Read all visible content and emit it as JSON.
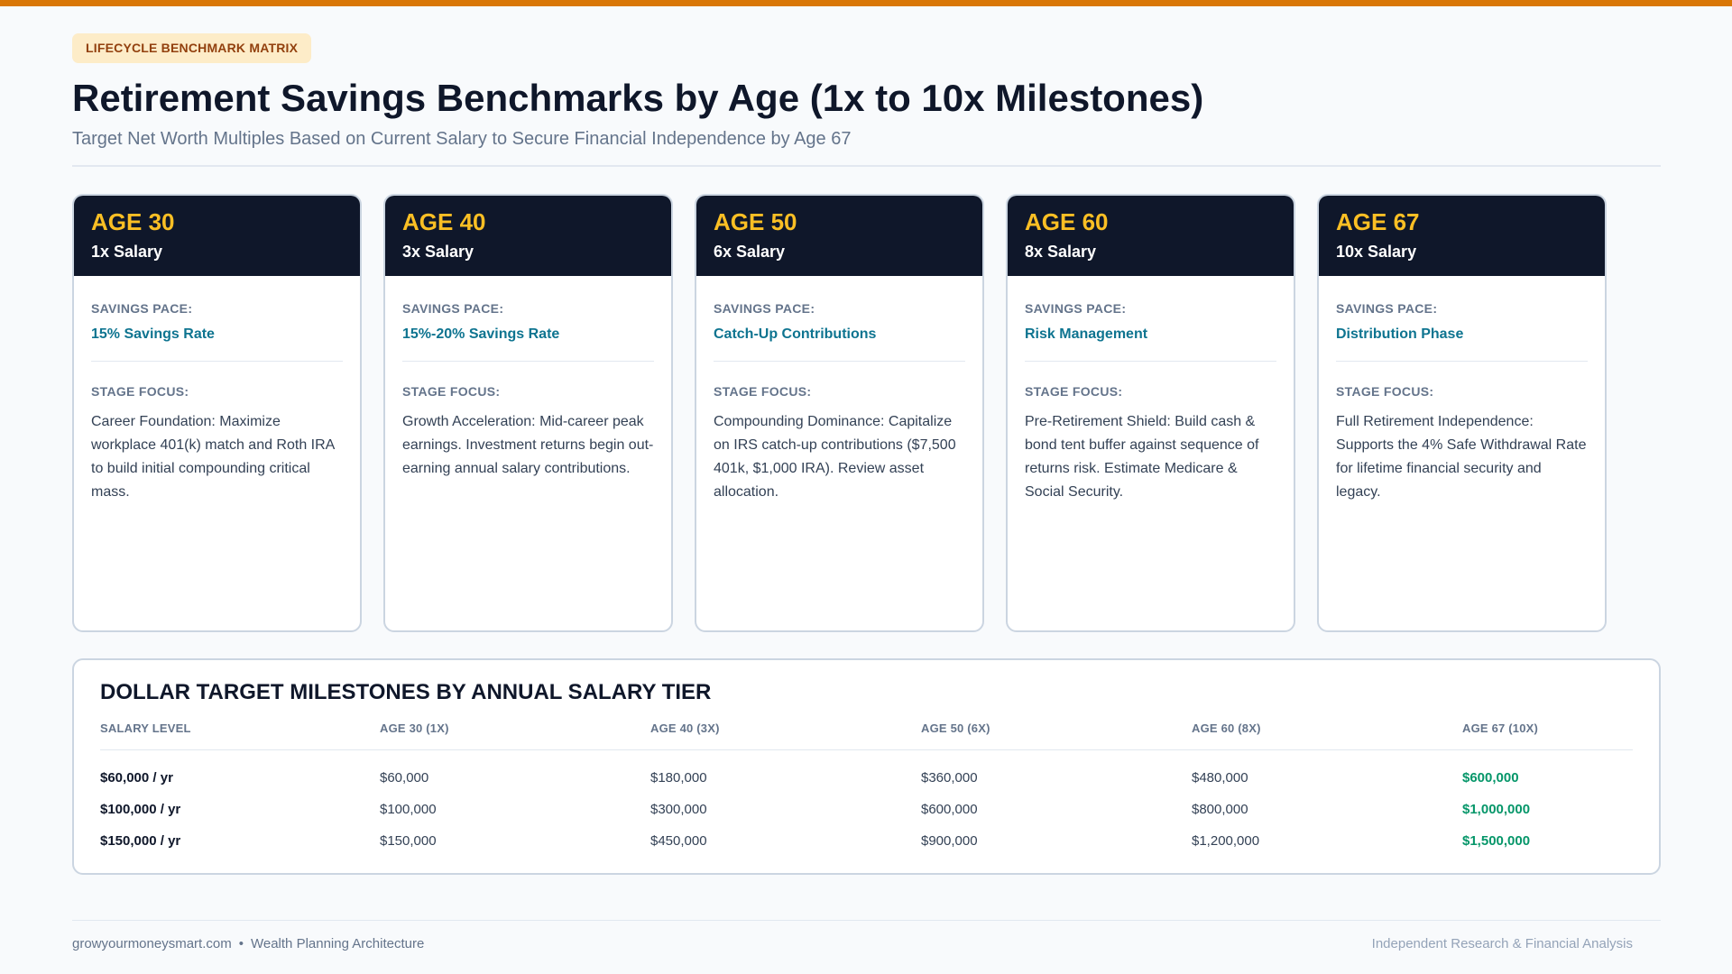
{
  "header": {
    "badge": "LIFECYCLE BENCHMARK MATRIX",
    "title": "Retirement Savings Benchmarks by Age (1x to 10x Milestones)",
    "subtitle": "Target Net Worth Multiples Based on Current Salary to Secure Financial Independence by Age 67"
  },
  "labels": {
    "pace": "SAVINGS PACE:",
    "focus": "STAGE FOCUS:"
  },
  "cards": [
    {
      "age": "AGE 30",
      "multiple": "1x Salary",
      "pace": "15% Savings Rate",
      "focus": "Career Foundation: Maximize workplace 401(k) match and Roth IRA to build initial compounding critical mass."
    },
    {
      "age": "AGE 40",
      "multiple": "3x Salary",
      "pace": "15%-20% Savings Rate",
      "focus": "Growth Acceleration: Mid-career peak earnings. Investment returns begin out-earning annual salary contributions."
    },
    {
      "age": "AGE 50",
      "multiple": "6x Salary",
      "pace": "Catch-Up Contributions",
      "focus": "Compounding Dominance: Capitalize on IRS catch-up contributions ($7,500 401k, $1,000 IRA). Review asset allocation."
    },
    {
      "age": "AGE 60",
      "multiple": "8x Salary",
      "pace": "Risk Management",
      "focus": "Pre-Retirement Shield: Build cash & bond tent buffer against sequence of returns risk. Estimate Medicare & Social Security."
    },
    {
      "age": "AGE 67",
      "multiple": "10x Salary",
      "pace": "Distribution Phase",
      "focus": "Full Retirement Independence: Supports the 4% Safe Withdrawal Rate for lifetime financial security and legacy."
    }
  ],
  "table": {
    "title": "DOLLAR TARGET MILESTONES BY ANNUAL SALARY TIER",
    "headers": [
      "SALARY LEVEL",
      "AGE 30 (1X)",
      "AGE 40 (3X)",
      "AGE 50 (6X)",
      "AGE 60 (8X)",
      "AGE 67 (10X)"
    ],
    "rows": [
      [
        "$60,000 / yr",
        "$60,000",
        "$180,000",
        "$360,000",
        "$480,000",
        "$600,000"
      ],
      [
        "$100,000 / yr",
        "$100,000",
        "$300,000",
        "$600,000",
        "$800,000",
        "$1,000,000"
      ],
      [
        "$150,000 / yr",
        "$150,000",
        "$450,000",
        "$900,000",
        "$1,200,000",
        "$1,500,000"
      ]
    ]
  },
  "footer": {
    "site": "growyourmoneysmart.com",
    "separator": "•",
    "tagline": "Wealth Planning Architecture",
    "right": "Independent Research & Financial Analysis"
  },
  "colors": {
    "accent": "#d97706",
    "header_bg": "#0f172a",
    "age_text": "#fbbf24",
    "pace_text": "#0e7490",
    "goal_text": "#059669"
  }
}
